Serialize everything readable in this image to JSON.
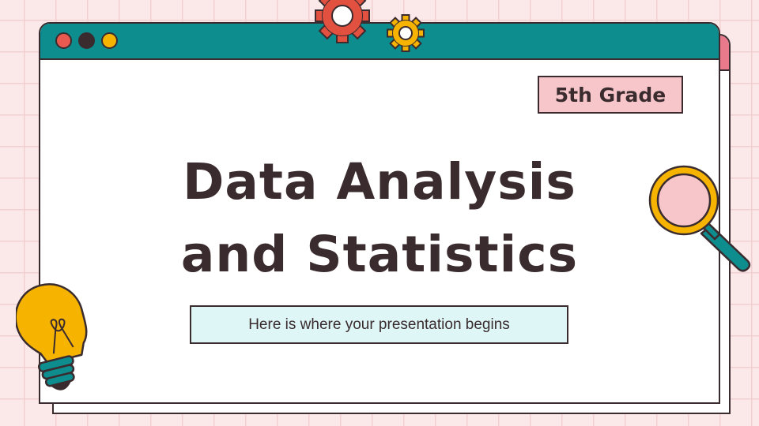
{
  "slide": {
    "grade_badge": "5th Grade",
    "title_line1": "Data Analysis",
    "title_line2": "and Statistics",
    "subtitle": "Here is where your presentation begins"
  },
  "window_controls": [
    "red-dot",
    "dark-dot",
    "yellow-dot"
  ],
  "icons": [
    "large-gear-icon",
    "small-gear-icon",
    "magnifying-glass-icon",
    "lightbulb-icon"
  ],
  "colors": {
    "background": "#fbe9e9",
    "grid": "#f3cfd1",
    "titlebar": "#0e8d8f",
    "back_tab": "#e87a8c",
    "text": "#3a2b2e",
    "badge": "#f7c6ca",
    "subtitle_box": "#dff6f6",
    "gear_red": "#e2503f",
    "gear_yellow": "#f6b400",
    "magnifier": "#f6b400",
    "bulb": "#f6b400"
  }
}
